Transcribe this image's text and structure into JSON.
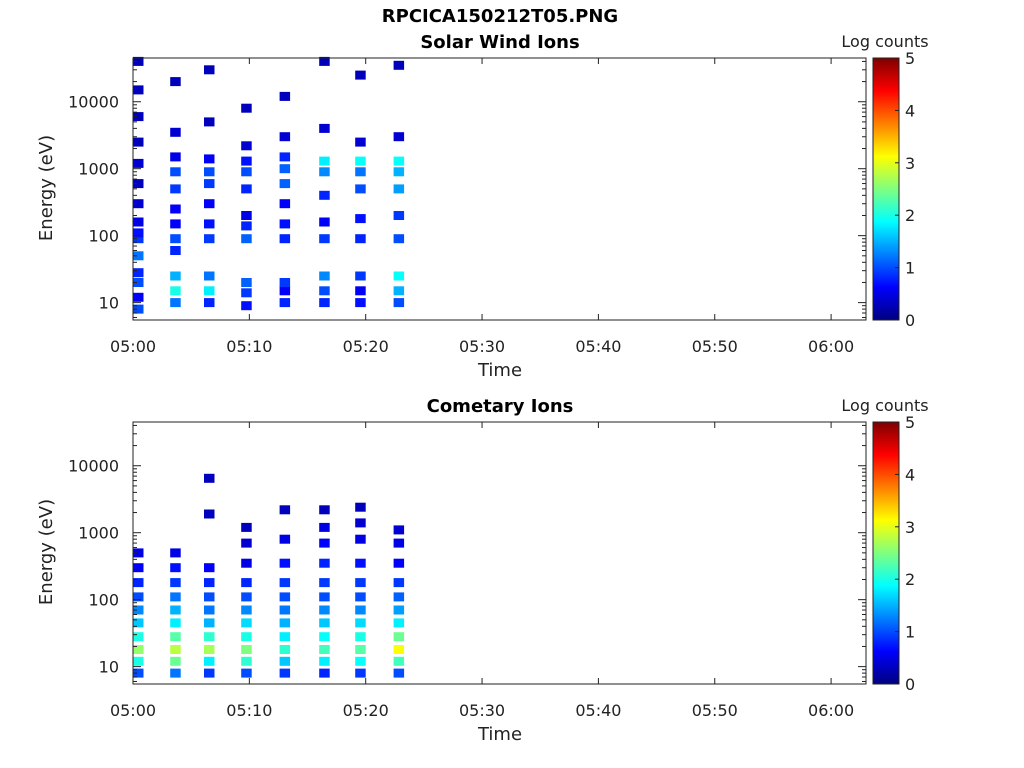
{
  "figure": {
    "title": "RPCICA150212T05.PNG"
  },
  "colormap": {
    "name": "jet",
    "stops": [
      "#00007f",
      "#0000ff",
      "#007fff",
      "#00ffff",
      "#7fff7f",
      "#ffff00",
      "#ff7f00",
      "#ff0000",
      "#7f0000"
    ]
  },
  "chart_data": [
    {
      "type": "heatmap",
      "title": "Solar Wind Ions",
      "xlabel": "Time",
      "ylabel": "Energy (eV)",
      "colorbar_label": "Log counts",
      "x_ticks": [
        "05:00",
        "05:10",
        "05:20",
        "05:30",
        "05:40",
        "05:50",
        "06:00"
      ],
      "y_ticks": [
        "10",
        "100",
        "1000",
        "10000"
      ],
      "y_tick_values": [
        10,
        100,
        1000,
        10000
      ],
      "y_scale": "log",
      "ylim": [
        5.5,
        45000
      ],
      "xlim_minutes": [
        0,
        63
      ],
      "clim": [
        0,
        5
      ],
      "colorbar_ticks": [
        "0",
        "1",
        "2",
        "3",
        "4",
        "5"
      ],
      "grid": false,
      "data_extent_minutes": [
        0,
        23.7
      ],
      "scans": [
        {
          "t": 0.0,
          "cells": [
            [
              8,
              1.0
            ],
            [
              12,
              0.6
            ],
            [
              20,
              1.0
            ],
            [
              28,
              0.8
            ],
            [
              50,
              1.2
            ],
            [
              90,
              0.9
            ],
            [
              110,
              0.7
            ],
            [
              160,
              0.5
            ],
            [
              300,
              0.4
            ],
            [
              600,
              0.3
            ],
            [
              1200,
              0.4
            ],
            [
              2500,
              0.3
            ],
            [
              6000,
              0.3
            ],
            [
              15000,
              0.3
            ],
            [
              40000,
              0.3
            ]
          ]
        },
        {
          "t": 3.2,
          "cells": [
            [
              10,
              1.2
            ],
            [
              15,
              2.0
            ],
            [
              25,
              1.5
            ],
            [
              60,
              0.8
            ],
            [
              90,
              1.0
            ],
            [
              150,
              0.6
            ],
            [
              250,
              0.6
            ],
            [
              500,
              0.9
            ],
            [
              900,
              1.0
            ],
            [
              1500,
              0.5
            ],
            [
              3500,
              0.4
            ],
            [
              20000,
              0.3
            ]
          ]
        },
        {
          "t": 6.1,
          "cells": [
            [
              10,
              0.8
            ],
            [
              15,
              1.8
            ],
            [
              25,
              1.2
            ],
            [
              90,
              0.9
            ],
            [
              150,
              0.7
            ],
            [
              300,
              0.6
            ],
            [
              600,
              0.9
            ],
            [
              900,
              1.0
            ],
            [
              1400,
              0.6
            ],
            [
              5000,
              0.3
            ],
            [
              30000,
              0.3
            ]
          ]
        },
        {
          "t": 9.3,
          "cells": [
            [
              9,
              0.7
            ],
            [
              14,
              0.9
            ],
            [
              20,
              1.1
            ],
            [
              90,
              1.1
            ],
            [
              140,
              0.8
            ],
            [
              200,
              0.5
            ],
            [
              500,
              0.8
            ],
            [
              900,
              1.0
            ],
            [
              1300,
              0.7
            ],
            [
              2200,
              0.4
            ],
            [
              8000,
              0.3
            ]
          ]
        },
        {
          "t": 12.6,
          "cells": [
            [
              10,
              0.8
            ],
            [
              15,
              0.6
            ],
            [
              20,
              0.9
            ],
            [
              90,
              0.8
            ],
            [
              150,
              0.7
            ],
            [
              300,
              0.6
            ],
            [
              600,
              1.1
            ],
            [
              1000,
              1.1
            ],
            [
              1500,
              0.8
            ],
            [
              3000,
              0.4
            ],
            [
              12000,
              0.3
            ]
          ]
        },
        {
          "t": 16.0,
          "cells": [
            [
              10,
              0.8
            ],
            [
              15,
              1.0
            ],
            [
              25,
              1.3
            ],
            [
              90,
              0.9
            ],
            [
              160,
              0.6
            ],
            [
              400,
              0.8
            ],
            [
              900,
              1.3
            ],
            [
              1300,
              1.8
            ],
            [
              4000,
              0.4
            ],
            [
              40000,
              0.3
            ]
          ]
        },
        {
          "t": 19.1,
          "cells": [
            [
              10,
              0.7
            ],
            [
              15,
              0.6
            ],
            [
              25,
              0.9
            ],
            [
              90,
              0.8
            ],
            [
              180,
              0.7
            ],
            [
              500,
              1.0
            ],
            [
              900,
              1.2
            ],
            [
              1300,
              1.9
            ],
            [
              2500,
              0.4
            ],
            [
              25000,
              0.3
            ]
          ]
        },
        {
          "t": 22.4,
          "cells": [
            [
              10,
              1.0
            ],
            [
              15,
              1.5
            ],
            [
              25,
              1.9
            ],
            [
              90,
              1.0
            ],
            [
              200,
              0.9
            ],
            [
              500,
              1.4
            ],
            [
              900,
              1.5
            ],
            [
              1300,
              1.9
            ],
            [
              3000,
              0.4
            ],
            [
              35000,
              0.3
            ]
          ]
        }
      ]
    },
    {
      "type": "heatmap",
      "title": "Cometary Ions",
      "xlabel": "Time",
      "ylabel": "Energy (eV)",
      "colorbar_label": "Log counts",
      "x_ticks": [
        "05:00",
        "05:10",
        "05:20",
        "05:30",
        "05:40",
        "05:50",
        "06:00"
      ],
      "y_ticks": [
        "10",
        "100",
        "1000",
        "10000"
      ],
      "y_tick_values": [
        10,
        100,
        1000,
        10000
      ],
      "y_scale": "log",
      "ylim": [
        5.5,
        45000
      ],
      "xlim_minutes": [
        0,
        63
      ],
      "clim": [
        0,
        5
      ],
      "colorbar_ticks": [
        "0",
        "1",
        "2",
        "3",
        "4",
        "5"
      ],
      "grid": false,
      "data_extent_minutes": [
        0,
        23.7
      ],
      "scans": [
        {
          "t": 0.0,
          "cells": [
            [
              8,
              1.0
            ],
            [
              12,
              2.0
            ],
            [
              18,
              2.6
            ],
            [
              28,
              2.0
            ],
            [
              45,
              1.6
            ],
            [
              70,
              1.3
            ],
            [
              110,
              1.0
            ],
            [
              180,
              0.8
            ],
            [
              300,
              0.6
            ],
            [
              500,
              0.5
            ]
          ]
        },
        {
          "t": 3.2,
          "cells": [
            [
              8,
              1.2
            ],
            [
              12,
              2.4
            ],
            [
              18,
              2.8
            ],
            [
              28,
              2.3
            ],
            [
              45,
              1.8
            ],
            [
              70,
              1.5
            ],
            [
              110,
              1.2
            ],
            [
              180,
              0.9
            ],
            [
              300,
              0.7
            ],
            [
              500,
              0.5
            ]
          ]
        },
        {
          "t": 6.1,
          "cells": [
            [
              8,
              0.9
            ],
            [
              12,
              1.8
            ],
            [
              18,
              2.7
            ],
            [
              28,
              2.1
            ],
            [
              45,
              1.5
            ],
            [
              70,
              1.2
            ],
            [
              110,
              1.0
            ],
            [
              180,
              0.8
            ],
            [
              300,
              0.6
            ],
            [
              1900,
              0.3
            ],
            [
              6500,
              0.3
            ]
          ]
        },
        {
          "t": 9.3,
          "cells": [
            [
              8,
              1.0
            ],
            [
              12,
              2.1
            ],
            [
              18,
              2.5
            ],
            [
              28,
              2.0
            ],
            [
              45,
              1.7
            ],
            [
              70,
              1.3
            ],
            [
              110,
              1.0
            ],
            [
              180,
              0.8
            ],
            [
              350,
              0.5
            ],
            [
              700,
              0.4
            ],
            [
              1200,
              0.3
            ]
          ]
        },
        {
          "t": 12.6,
          "cells": [
            [
              8,
              0.9
            ],
            [
              12,
              1.6
            ],
            [
              18,
              2.1
            ],
            [
              28,
              1.8
            ],
            [
              45,
              1.5
            ],
            [
              70,
              1.2
            ],
            [
              110,
              1.0
            ],
            [
              180,
              0.9
            ],
            [
              350,
              0.7
            ],
            [
              800,
              0.5
            ],
            [
              2200,
              0.3
            ]
          ]
        },
        {
          "t": 16.0,
          "cells": [
            [
              8,
              0.8
            ],
            [
              12,
              1.8
            ],
            [
              18,
              2.2
            ],
            [
              28,
              1.9
            ],
            [
              45,
              1.6
            ],
            [
              70,
              1.3
            ],
            [
              110,
              1.0
            ],
            [
              180,
              0.9
            ],
            [
              350,
              0.8
            ],
            [
              700,
              0.6
            ],
            [
              1200,
              0.5
            ],
            [
              2200,
              0.3
            ]
          ]
        },
        {
          "t": 19.1,
          "cells": [
            [
              8,
              0.9
            ],
            [
              12,
              1.9
            ],
            [
              18,
              2.3
            ],
            [
              28,
              2.0
            ],
            [
              45,
              1.7
            ],
            [
              70,
              1.3
            ],
            [
              110,
              1.0
            ],
            [
              180,
              0.9
            ],
            [
              350,
              0.7
            ],
            [
              800,
              0.5
            ],
            [
              1400,
              0.4
            ],
            [
              2400,
              0.3
            ]
          ]
        },
        {
          "t": 22.4,
          "cells": [
            [
              8,
              1.0
            ],
            [
              12,
              2.2
            ],
            [
              18,
              3.1
            ],
            [
              28,
              2.4
            ],
            [
              45,
              1.8
            ],
            [
              70,
              1.4
            ],
            [
              110,
              1.1
            ],
            [
              180,
              0.9
            ],
            [
              350,
              0.6
            ],
            [
              700,
              0.5
            ],
            [
              1100,
              0.4
            ]
          ]
        }
      ]
    }
  ]
}
